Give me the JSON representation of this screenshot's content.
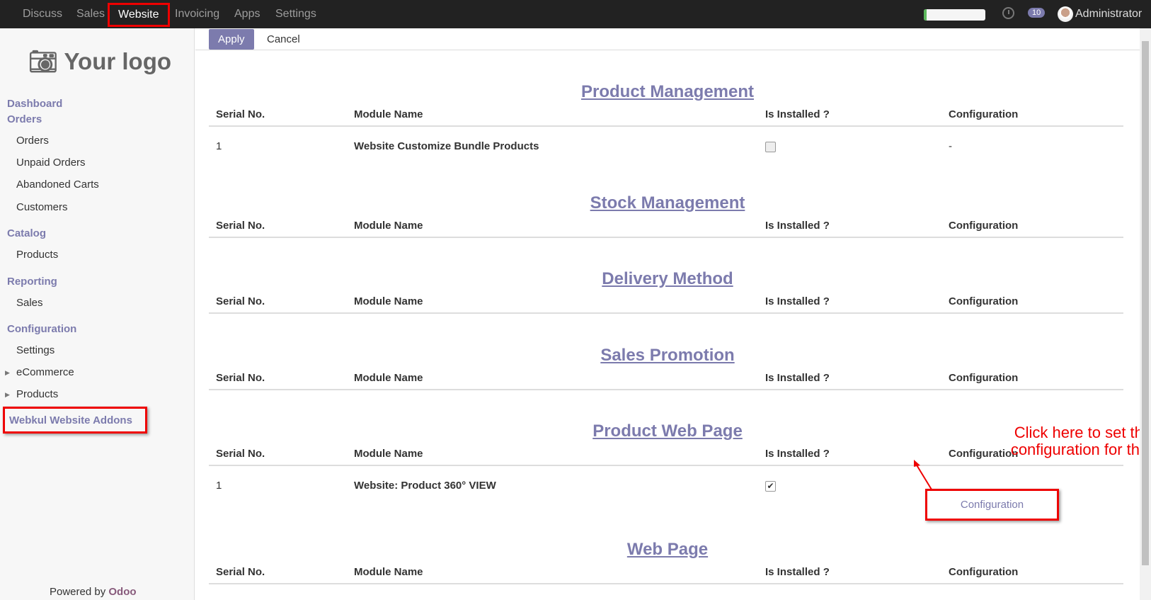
{
  "nav": {
    "items": [
      "Discuss",
      "Sales",
      "Website",
      "Invoicing",
      "Apps",
      "Settings"
    ],
    "active": "Website",
    "progress_percent": 5,
    "chat_count": "10",
    "user": "Administrator"
  },
  "sidebar": {
    "logo": "Your logo",
    "sections": [
      {
        "label": "Dashboard"
      },
      {
        "label": "Orders",
        "items": [
          "Orders",
          "Unpaid Orders",
          "Abandoned Carts",
          "Customers"
        ]
      },
      {
        "label": "Catalog",
        "items": [
          "Products"
        ]
      },
      {
        "label": "Reporting",
        "items": [
          "Sales"
        ]
      },
      {
        "label": "Configuration",
        "items": [
          "Settings",
          "eCommerce",
          "Products"
        ]
      }
    ],
    "webkul": "Webkul Website Addons",
    "powered_by": "Powered by",
    "odoo": "Odoo"
  },
  "toolbar": {
    "apply": "Apply",
    "cancel": "Cancel"
  },
  "columns": [
    "Serial No.",
    "Module Name",
    "Is Installed ?",
    "Configuration"
  ],
  "sections": [
    {
      "title": "Product Management",
      "rows": [
        {
          "serial": "1",
          "name": "Website Customize Bundle Products",
          "installed": false,
          "config": "-"
        }
      ]
    },
    {
      "title": "Stock Management",
      "rows": []
    },
    {
      "title": "Delivery Method",
      "rows": []
    },
    {
      "title": "Sales Promotion",
      "rows": []
    },
    {
      "title": "Product Web Page",
      "rows": [
        {
          "serial": "1",
          "name": "Website: Product 360° VIEW",
          "installed": true,
          "config": "Configuration"
        }
      ]
    },
    {
      "title": "Web Page",
      "rows": []
    }
  ],
  "annotation": {
    "line1": "Click here to set the default",
    "line2": "configuration for this module"
  },
  "colors": {
    "accent": "#7c7bad",
    "highlight": "#e00000"
  }
}
